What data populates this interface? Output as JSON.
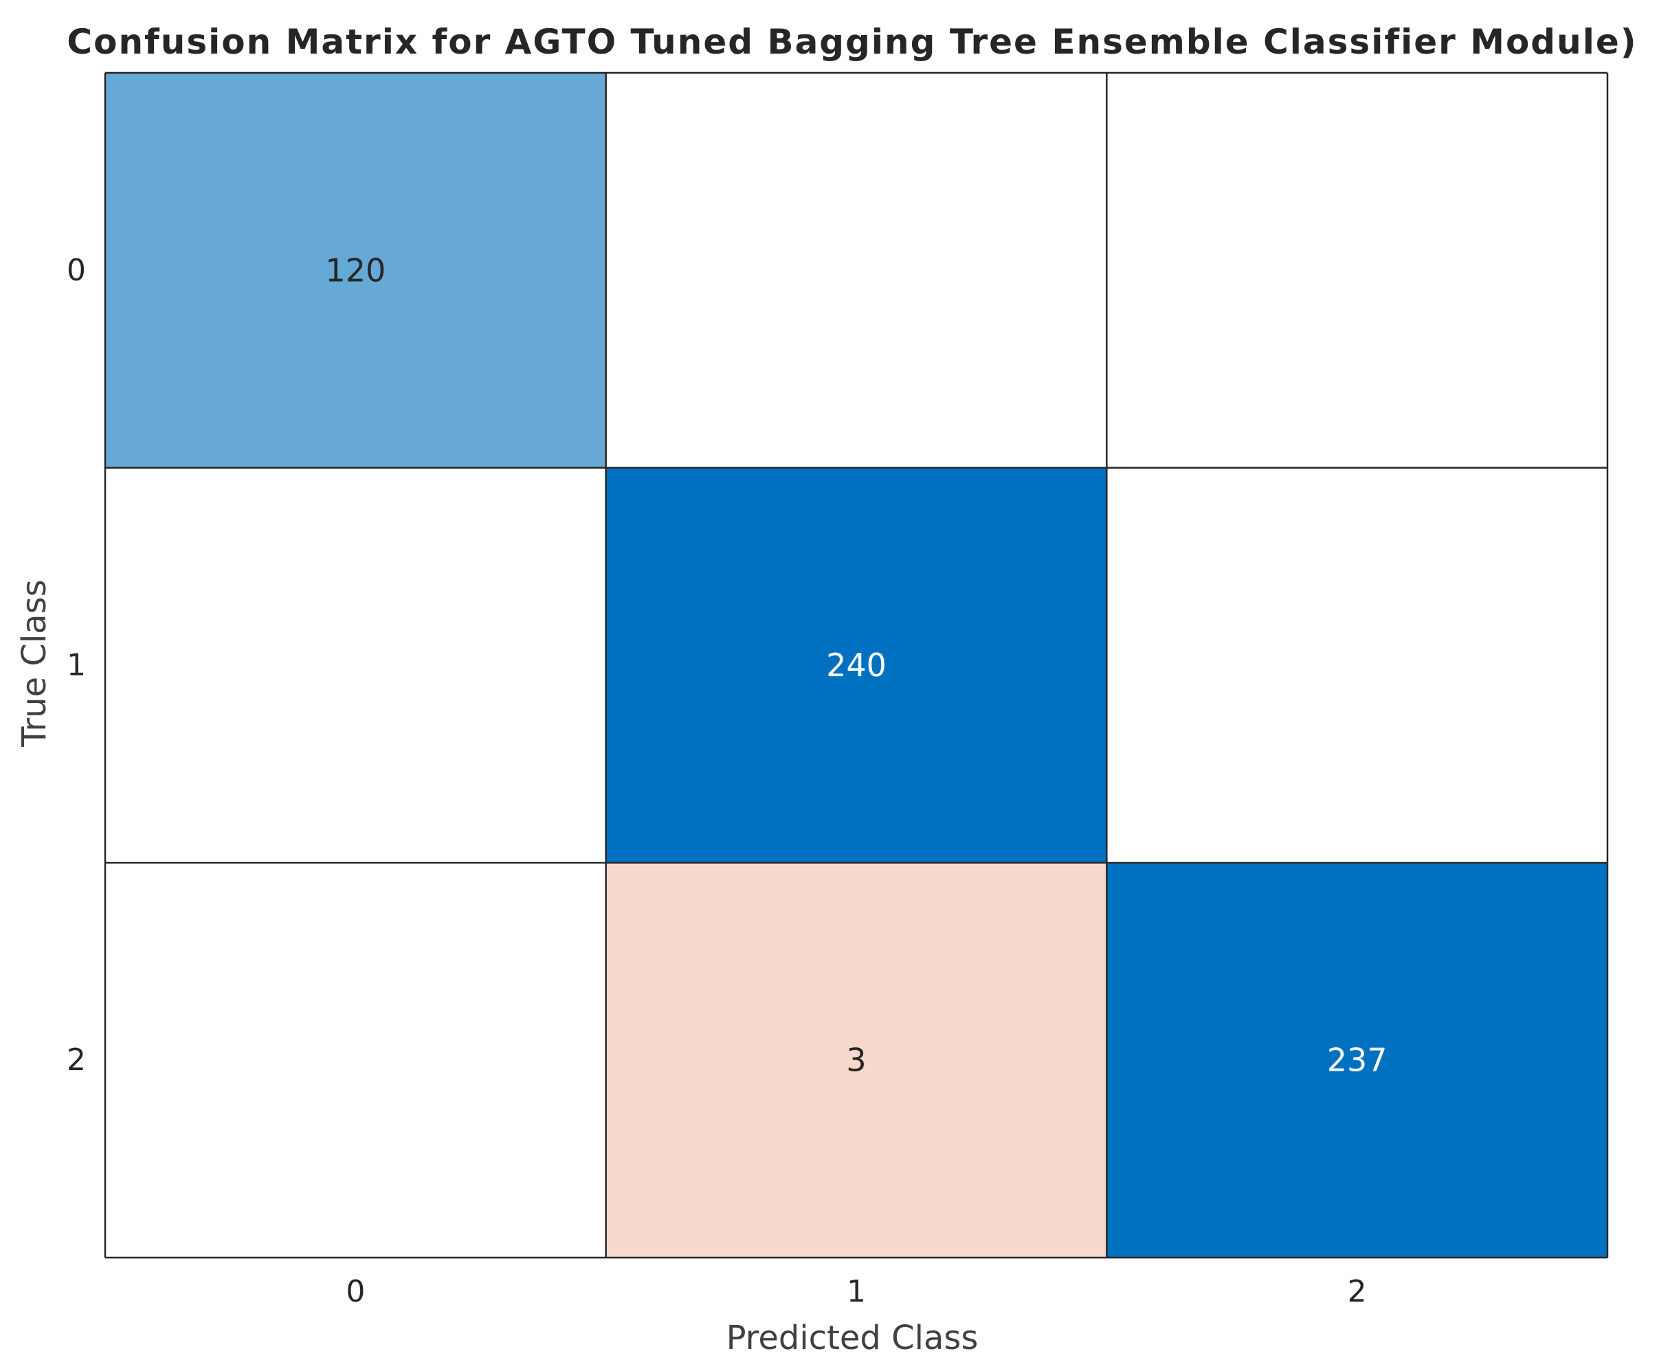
{
  "chart_data": {
    "type": "heatmap",
    "title": "Confusion Matrix for AGTO Tuned Bagging Tree Ensemble Classifier Module)",
    "xlabel": "Predicted Class",
    "ylabel": "True Class",
    "x_categories": [
      "0",
      "1",
      "2"
    ],
    "y_categories": [
      "0",
      "1",
      "2"
    ],
    "matrix": [
      [
        120,
        null,
        null
      ],
      [
        null,
        240,
        null
      ],
      [
        null,
        3,
        237
      ]
    ],
    "cell_colors": [
      [
        "#66a9d6",
        "#ffffff",
        "#ffffff"
      ],
      [
        "#ffffff",
        "#0070c0",
        "#ffffff"
      ],
      [
        "#ffffff",
        "#f7d9cc",
        "#0071bf"
      ]
    ],
    "cell_text_colors": [
      [
        "#262626",
        "#262626",
        "#262626"
      ],
      [
        "#262626",
        "#ffffff",
        "#262626"
      ],
      [
        "#262626",
        "#262626",
        "#ffffff"
      ]
    ],
    "grid": true,
    "legend": "none"
  }
}
